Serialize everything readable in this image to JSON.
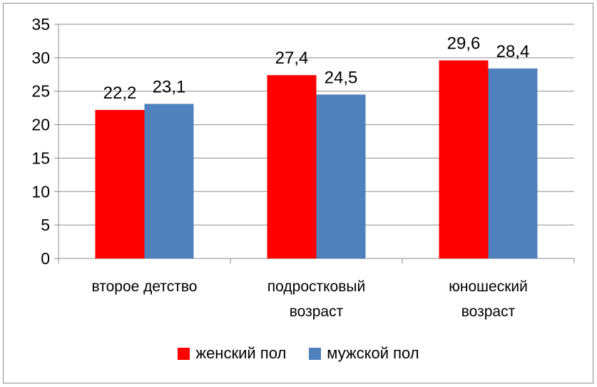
{
  "chart_data": {
    "type": "bar",
    "title": "",
    "xlabel": "",
    "ylabel": "",
    "categories": [
      [
        "второе детство"
      ],
      [
        "подростковый",
        "возраст"
      ],
      [
        "юношеский",
        "возраст"
      ]
    ],
    "series": [
      {
        "name": "женский пол",
        "values": [
          22.2,
          27.4,
          29.6
        ],
        "labels": [
          "22,2",
          "27,4",
          "29,6"
        ],
        "color": "#ff0000"
      },
      {
        "name": "мужской пол",
        "values": [
          23.1,
          24.5,
          28.4
        ],
        "labels": [
          "23,1",
          "24,5",
          "28,4"
        ],
        "color": "#4f81bd"
      }
    ],
    "ylim": [
      0,
      35
    ],
    "yticks": [
      0,
      5,
      10,
      15,
      20,
      25,
      30,
      35
    ],
    "grid": true,
    "legend": "bottom"
  }
}
